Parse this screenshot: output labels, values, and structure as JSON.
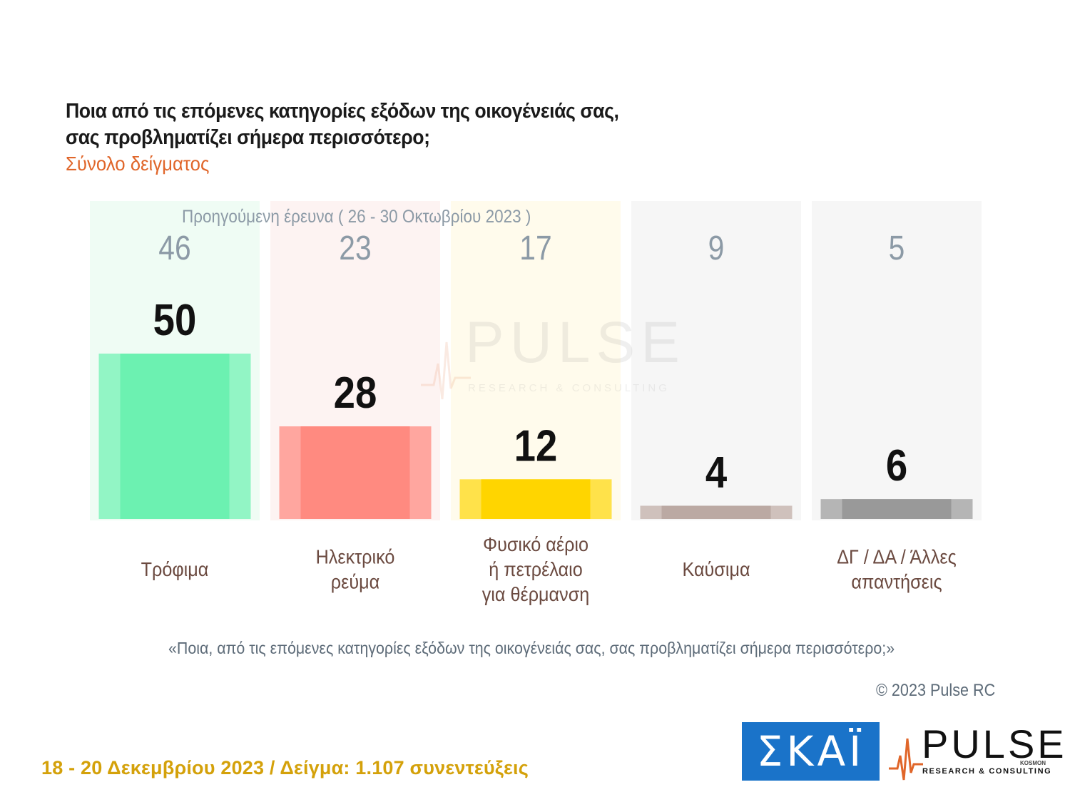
{
  "title_line1": "Ποια από τις επόμενες κατηγορίες εξόδων της οικογένειάς σας,",
  "title_line2": "σας προβληματίζει σήμερα περισσότερο;",
  "subtitle": "Σύνολο δείγματος",
  "previous_survey_label": "Προηγούμενη έρευνα ( 26 - 30 Οκτωβρίου 2023 )",
  "question_text": "«Ποια, από τις επόμενες κατηγορίες εξόδων της οικογένειάς σας, σας προβληματίζει σήμερα περισσότερο;»",
  "copyright": "© 2023 Pulse RC",
  "footer": "18 - 20  Δεκεμβρίου  2023  /  Δείγμα:  1.107 συνεντεύξεις",
  "watermark": {
    "name": "PULSE",
    "tagline": "RESEARCH & CONSULTING",
    "kosmon": "KOSMON"
  },
  "logos": {
    "skai": "ΣΚΑΪ",
    "pulse": "PULSE",
    "pulse_tagline": "RESEARCH & CONSULTING",
    "pulse_kosmon": "KOSMON"
  },
  "chart_data": {
    "type": "bar",
    "categories": [
      [
        "Τρόφιμα"
      ],
      [
        "Ηλεκτρικό",
        "ρεύμα"
      ],
      [
        "Φυσικό αέριο",
        "ή πετρέλαιο",
        "για θέρμανση"
      ],
      [
        "Καύσιμα"
      ],
      [
        "ΔΓ / ΔΑ / Άλλες",
        "απαντήσεις"
      ]
    ],
    "series": [
      {
        "name": "",
        "values": [
          50,
          28,
          12,
          4,
          6
        ]
      },
      {
        "name": "Προηγούμενη έρευνα ( 26 - 30 Οκτωβρίου 2023 )",
        "values": [
          46,
          23,
          17,
          9,
          5
        ]
      }
    ],
    "ylim": [
      0,
      50
    ],
    "colors": {
      "bars": [
        "#6cf1b1",
        "#ff8a80",
        "#ffd500",
        "#bba9a3",
        "#999999"
      ],
      "bar_edges": [
        "#92f5c5",
        "#ffa69f",
        "#ffe24a",
        "#cfc1bc",
        "#b5b5b5"
      ],
      "backgrounds": [
        "#effcf4",
        "#fdf3f2",
        "#fffbec",
        "#f6f6f6",
        "#f6f6f6"
      ],
      "previous_value_text": "#8c9aa6",
      "current_value_text": "#111111",
      "category_text": "#6b4a40"
    }
  }
}
